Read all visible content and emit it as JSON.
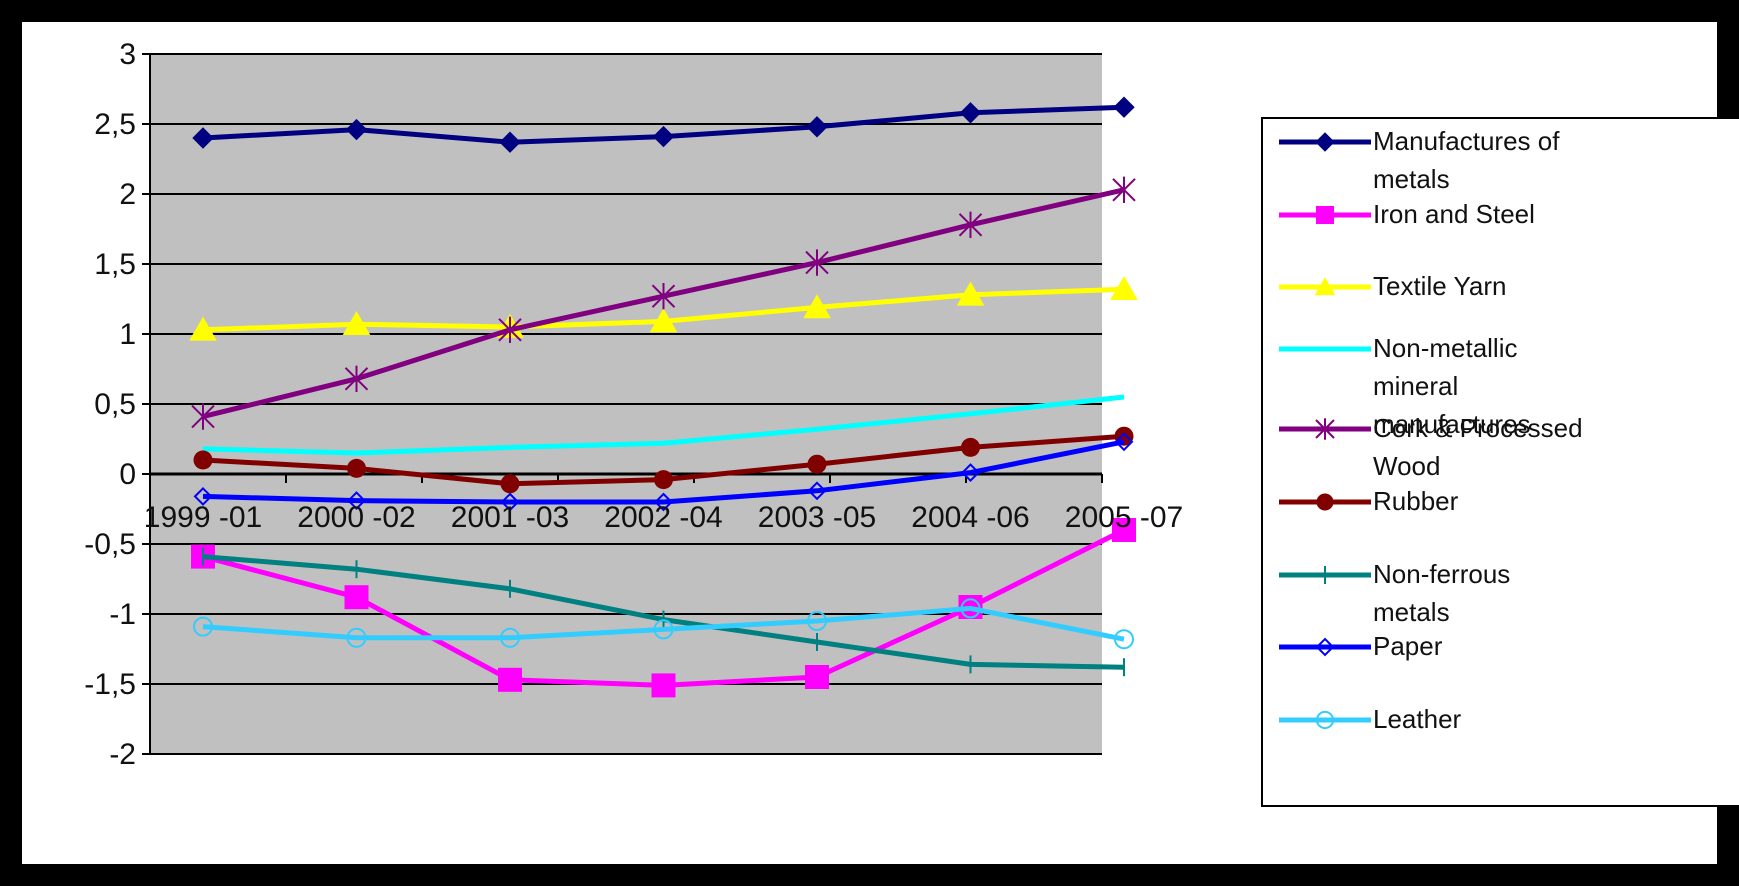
{
  "chart_data": {
    "type": "line",
    "title": "",
    "xlabel": "",
    "ylabel": "",
    "ylim": [
      -2,
      3
    ],
    "yticks": [
      3,
      2.5,
      2,
      1.5,
      1,
      0.5,
      0,
      -0.5,
      -1,
      -1.5,
      -2
    ],
    "ytick_labels": [
      "3",
      "2,5",
      "2",
      "1,5",
      "1",
      "0,5",
      "0",
      "-0,5",
      "-1",
      "-1,5",
      "-2"
    ],
    "categories": [
      "1999 -01",
      "2000 -02",
      "2001 -03",
      "2002 -04",
      "2003 -05",
      "2004 -06",
      "2005 -07"
    ],
    "grid": "horizontal",
    "legend_position": "right",
    "plot_background": "#c0c0c0",
    "series": [
      {
        "name": "Manufactures of metals",
        "color": "#000080",
        "marker": "diamond",
        "values": [
          2.4,
          2.46,
          2.37,
          2.41,
          2.48,
          2.58,
          2.62
        ]
      },
      {
        "name": "Iron and Steel",
        "color": "#ff00ff",
        "marker": "square",
        "values": [
          -0.59,
          -0.88,
          -1.47,
          -1.51,
          -1.45,
          -0.95,
          -0.4
        ]
      },
      {
        "name": "Textile Yarn",
        "color": "#ffff00",
        "marker": "triangle",
        "values": [
          1.03,
          1.07,
          1.05,
          1.09,
          1.19,
          1.28,
          1.32
        ]
      },
      {
        "name": "Non-metallic mineral manufactures",
        "color": "#00ffff",
        "marker": "none",
        "values": [
          0.18,
          0.15,
          0.19,
          0.22,
          0.32,
          0.43,
          0.55
        ]
      },
      {
        "name": "Cork & Processed Wood",
        "color": "#800080",
        "marker": "star",
        "values": [
          0.41,
          0.68,
          1.03,
          1.27,
          1.51,
          1.78,
          2.03
        ]
      },
      {
        "name": "Rubber",
        "color": "#800000",
        "marker": "circle",
        "values": [
          0.1,
          0.04,
          -0.07,
          -0.04,
          0.07,
          0.19,
          0.27
        ]
      },
      {
        "name": "Non-ferrous metals",
        "color": "#008080",
        "marker": "plus",
        "values": [
          -0.59,
          -0.68,
          -0.82,
          -1.04,
          -1.2,
          -1.36,
          -1.38
        ]
      },
      {
        "name": "Paper",
        "color": "#0000ff",
        "marker": "hollow-diamond",
        "values": [
          -0.16,
          -0.19,
          -0.2,
          -0.2,
          -0.12,
          0.01,
          0.23
        ]
      },
      {
        "name": "Leather",
        "color": "#33ccff",
        "marker": "hollow-circle",
        "values": [
          -1.09,
          -1.17,
          -1.17,
          -1.11,
          -1.05,
          -0.96,
          -1.18
        ]
      }
    ]
  }
}
